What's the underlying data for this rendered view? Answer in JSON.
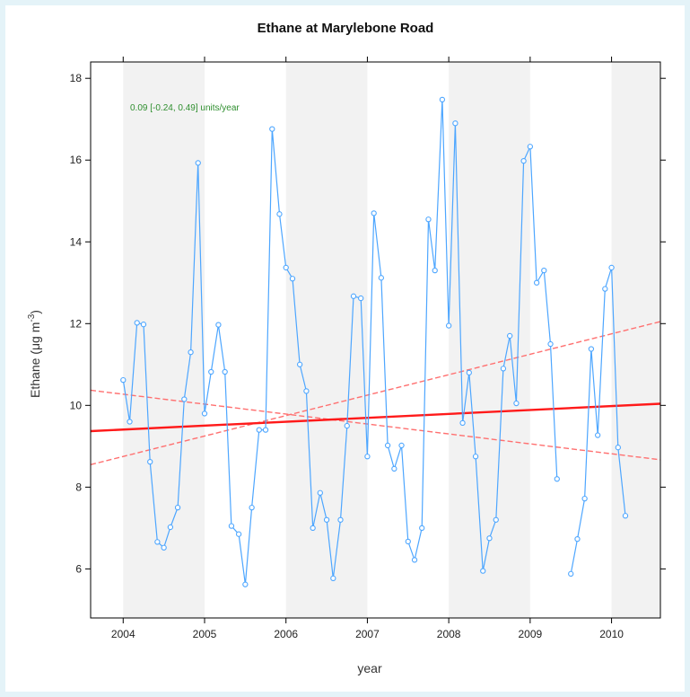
{
  "chart_data": {
    "type": "line",
    "title": "Ethane at Marylebone Road",
    "xlabel": "year",
    "ylabel": "Ethane (μg m⁻³)",
    "ylabel_parts": {
      "main": "Ethane (μg m",
      "sup": "-3",
      "close": ")"
    },
    "xlim": [
      2003.6,
      2010.6
    ],
    "ylim": [
      4.8,
      18.4
    ],
    "x_ticks": [
      2004,
      2005,
      2006,
      2007,
      2008,
      2009,
      2010
    ],
    "x_tick_labels": [
      "2004",
      "2005",
      "2006",
      "2007",
      "2008",
      "2009",
      "2010"
    ],
    "y_ticks": [
      6,
      8,
      10,
      12,
      14,
      16,
      18
    ],
    "y_tick_labels": [
      "6",
      "8",
      "10",
      "12",
      "14",
      "16",
      "18"
    ],
    "shaded_years": [
      [
        2004,
        2005
      ],
      [
        2006,
        2007
      ],
      [
        2008,
        2009
      ],
      [
        2010,
        2010.6
      ]
    ],
    "grid": false,
    "annotation": "0.09 [-0.24, 0.49] units/year",
    "colors": {
      "series": "#4da6ff",
      "trend": "#ff1a1a",
      "ci": "#ff7070",
      "shade": "#f2f2f2",
      "annotation": "#2f8f2f"
    },
    "series": [
      {
        "points": [
          [
            2004.0,
            10.62
          ],
          [
            2004.08,
            9.6
          ],
          [
            2004.17,
            12.02
          ],
          [
            2004.25,
            11.98
          ],
          [
            2004.33,
            8.62
          ],
          [
            2004.42,
            6.66
          ],
          [
            2004.5,
            6.52
          ],
          [
            2004.58,
            7.02
          ],
          [
            2004.67,
            7.5
          ],
          [
            2004.75,
            10.15
          ],
          [
            2004.83,
            11.3
          ],
          [
            2004.92,
            15.93
          ],
          [
            2005.0,
            9.8
          ],
          [
            2005.08,
            10.82
          ],
          [
            2005.17,
            11.97
          ],
          [
            2005.25,
            10.82
          ],
          [
            2005.33,
            7.05
          ],
          [
            2005.42,
            6.85
          ],
          [
            2005.5,
            5.62
          ],
          [
            2005.58,
            7.5
          ],
          [
            2005.67,
            9.4
          ],
          [
            2005.75,
            9.4
          ],
          [
            2005.83,
            16.76
          ],
          [
            2005.92,
            14.68
          ],
          [
            2006.0,
            13.37
          ],
          [
            2006.08,
            13.1
          ],
          [
            2006.17,
            11.0
          ],
          [
            2006.25,
            10.35
          ],
          [
            2006.33,
            7.0
          ],
          [
            2006.42,
            7.86
          ],
          [
            2006.5,
            7.2
          ],
          [
            2006.58,
            5.77
          ],
          [
            2006.67,
            7.2
          ],
          [
            2006.75,
            9.5
          ],
          [
            2006.83,
            12.67
          ],
          [
            2006.92,
            12.62
          ],
          [
            2007.0,
            8.75
          ],
          [
            2007.08,
            14.7
          ],
          [
            2007.17,
            13.12
          ],
          [
            2007.25,
            9.02
          ],
          [
            2007.33,
            8.45
          ],
          [
            2007.42,
            9.02
          ],
          [
            2007.5,
            6.67
          ],
          [
            2007.58,
            6.22
          ],
          [
            2007.67,
            7.0
          ],
          [
            2007.75,
            14.55
          ],
          [
            2007.83,
            13.3
          ],
          [
            2007.92,
            17.48
          ],
          [
            2008.0,
            11.95
          ],
          [
            2008.08,
            16.9
          ],
          [
            2008.17,
            9.57
          ],
          [
            2008.25,
            10.8
          ],
          [
            2008.33,
            8.75
          ],
          [
            2008.42,
            5.95
          ],
          [
            2008.5,
            6.75
          ],
          [
            2008.58,
            7.2
          ],
          [
            2008.67,
            10.9
          ],
          [
            2008.75,
            11.7
          ],
          [
            2008.83,
            10.05
          ],
          [
            2008.92,
            15.98
          ],
          [
            2009.0,
            16.33
          ],
          [
            2009.08,
            13.0
          ],
          [
            2009.17,
            13.3
          ],
          [
            2009.25,
            11.5
          ],
          [
            2009.33,
            8.2
          ]
        ]
      },
      {
        "points": [
          [
            2009.5,
            5.88
          ],
          [
            2009.58,
            6.73
          ],
          [
            2009.67,
            7.72
          ],
          [
            2009.75,
            11.38
          ],
          [
            2009.83,
            9.27
          ],
          [
            2009.92,
            12.85
          ],
          [
            2010.0,
            13.37
          ],
          [
            2010.08,
            8.97
          ],
          [
            2010.17,
            7.3
          ]
        ]
      }
    ],
    "trend": {
      "x": [
        2003.6,
        2010.6
      ],
      "y": [
        9.37,
        10.04
      ]
    },
    "trend_ci": [
      {
        "x": [
          2003.6,
          2010.6
        ],
        "y": [
          8.55,
          12.05
        ]
      },
      {
        "x": [
          2003.6,
          2010.6
        ],
        "y": [
          10.37,
          8.67
        ]
      }
    ]
  }
}
